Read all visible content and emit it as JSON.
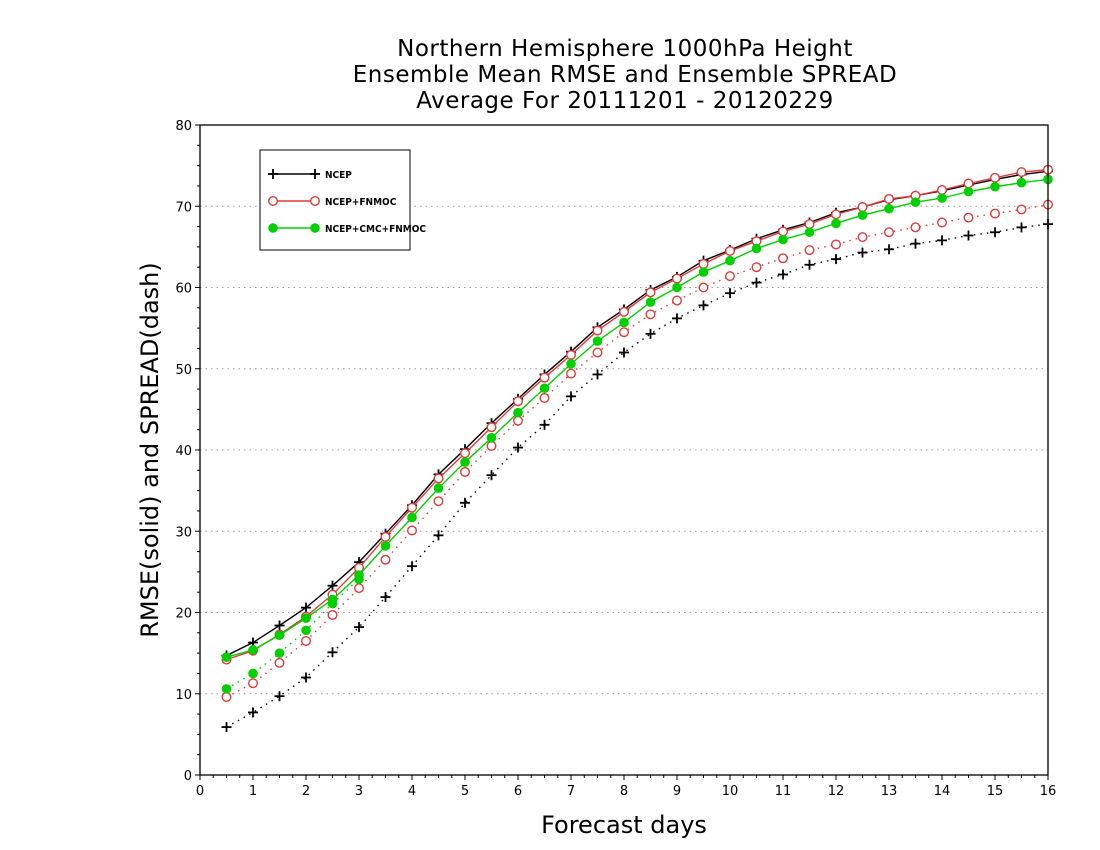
{
  "chart_data": {
    "type": "line",
    "title": [
      "Northern Hemisphere 1000hPa Height",
      "Ensemble Mean RMSE and Ensemble SPREAD",
      "Average For 20111201 - 20120229"
    ],
    "xlabel": "Forecast days",
    "ylabel": "RMSE(solid) and SPREAD(dash)",
    "xlim": [
      0,
      16
    ],
    "ylim": [
      0,
      80
    ],
    "xticks": [
      0,
      1,
      2,
      3,
      4,
      5,
      6,
      7,
      8,
      9,
      10,
      11,
      12,
      13,
      14,
      15,
      16
    ],
    "yticks": [
      0,
      10,
      20,
      30,
      40,
      50,
      60,
      70,
      80
    ],
    "grid": "horizontal-dotted",
    "legend_position": "top-left",
    "x": [
      0.5,
      1,
      1.5,
      2,
      2.5,
      3,
      3.5,
      4,
      4.5,
      5,
      5.5,
      6,
      6.5,
      7,
      7.5,
      8,
      8.5,
      9,
      9.5,
      10,
      10.5,
      11,
      11.5,
      12,
      12.5,
      13,
      13.5,
      14,
      14.5,
      15,
      15.5,
      16
    ],
    "series": [
      {
        "name": "NCEP",
        "color": "#000000",
        "marker": "plus",
        "rmse": [
          14.7,
          16.3,
          18.4,
          20.6,
          23.3,
          26.2,
          29.7,
          33.2,
          37.0,
          40.1,
          43.3,
          46.3,
          49.3,
          52.1,
          55.1,
          57.3,
          59.7,
          61.3,
          63.3,
          64.6,
          66.0,
          67.1,
          68.0,
          69.2,
          69.9,
          70.8,
          71.3,
          71.9,
          72.6,
          73.3,
          73.9,
          74.3
        ],
        "spread": [
          5.9,
          7.7,
          9.7,
          12.0,
          15.1,
          18.2,
          21.9,
          25.7,
          29.5,
          33.5,
          36.9,
          40.3,
          43.1,
          46.6,
          49.3,
          52.0,
          54.3,
          56.2,
          57.8,
          59.3,
          60.6,
          61.6,
          62.8,
          63.5,
          64.3,
          64.7,
          65.4,
          65.8,
          66.4,
          66.8,
          67.4,
          67.8
        ]
      },
      {
        "name": "NCEP+FNMOC",
        "color": "#e03a3a",
        "marker": "open-circle",
        "rmse": [
          14.2,
          15.3,
          17.3,
          19.5,
          22.2,
          25.5,
          29.3,
          32.9,
          36.5,
          39.6,
          42.8,
          46.0,
          48.9,
          51.7,
          54.7,
          57.0,
          59.4,
          61.1,
          62.9,
          64.5,
          65.7,
          66.9,
          67.8,
          69.0,
          69.9,
          70.9,
          71.3,
          72.0,
          72.8,
          73.5,
          74.2,
          74.5
        ],
        "spread": [
          9.6,
          11.3,
          13.8,
          16.5,
          19.7,
          23.0,
          26.5,
          30.1,
          33.7,
          37.3,
          40.5,
          43.6,
          46.4,
          49.4,
          52.0,
          54.5,
          56.7,
          58.4,
          60.0,
          61.4,
          62.5,
          63.6,
          64.6,
          65.3,
          66.2,
          66.8,
          67.4,
          68.0,
          68.6,
          69.1,
          69.6,
          70.2
        ]
      },
      {
        "name": "NCEP+CMC+FNMOC",
        "color": "#00d000",
        "marker": "filled-circle",
        "rmse": [
          14.5,
          15.4,
          17.2,
          19.3,
          21.6,
          24.6,
          28.2,
          31.7,
          35.3,
          38.5,
          41.5,
          44.6,
          47.6,
          50.6,
          53.4,
          55.7,
          58.2,
          60.0,
          61.9,
          63.3,
          64.8,
          65.9,
          66.8,
          67.9,
          68.9,
          69.7,
          70.5,
          71.0,
          71.8,
          72.4,
          72.9,
          73.3
        ],
        "spread": [
          10.6,
          12.5,
          15.0,
          17.8,
          21.1,
          24.1,
          null,
          null,
          null,
          null,
          null,
          null,
          null,
          null,
          null,
          null,
          null,
          null,
          null,
          null,
          null,
          null,
          null,
          null,
          null,
          null,
          null,
          null,
          null,
          null,
          null,
          null
        ]
      }
    ]
  }
}
